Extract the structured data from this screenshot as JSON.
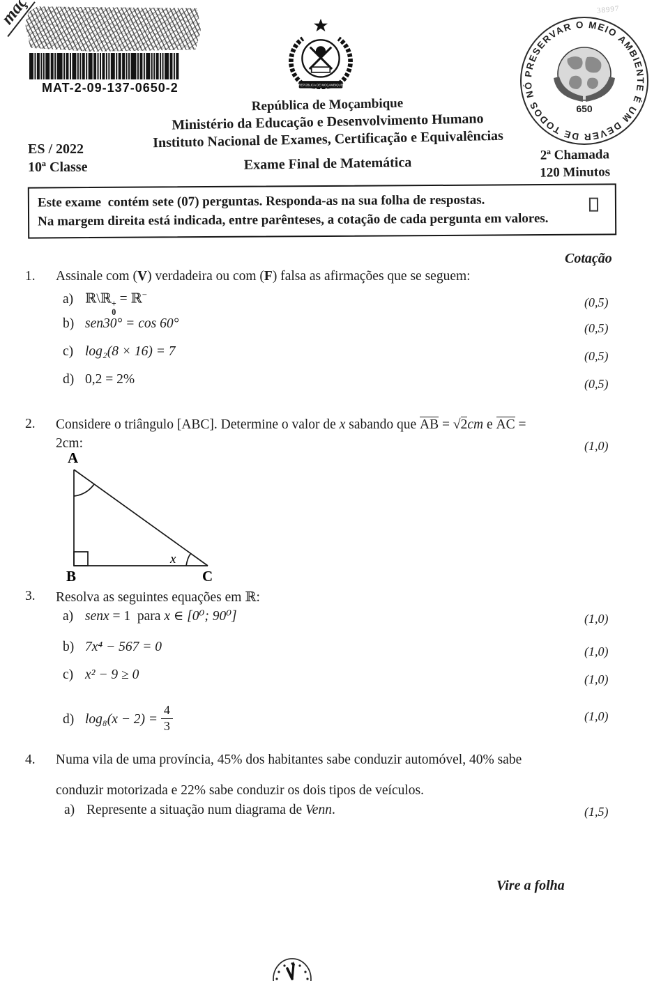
{
  "page": {
    "corner_fragment": "maç",
    "faint_number": "38997"
  },
  "barcode": {
    "label": "MAT-2-09-137-0650-2"
  },
  "emblem": {
    "banner_text": "REPÚBLICA DE MOÇAMBIQUE"
  },
  "eco_stamp": {
    "ring_text": "PRESERVAR O MEIO AMBIENTE É UM DEVER DE TODOS NÓS •",
    "center_number": "650"
  },
  "header": {
    "country": "República de Moçambique",
    "ministry": "Ministério da Educação e Desenvolvimento Humano",
    "institute": "Instituto Nacional de Exames, Certificação e Equivalências",
    "exam_title": "Exame Final de Matemática",
    "session": "ES / 2022",
    "grade": "10ª Classe",
    "call": "2ª Chamada",
    "duration": "120 Minutos"
  },
  "notice": {
    "line1": "Este exame  contém sete (07) perguntas. Responda-as na sua folha de respostas.",
    "line2": "Na margem direita está indicada, entre parênteses, a cotação de cada pergunta em valores."
  },
  "cotacao_header": "Cotação",
  "q1": {
    "number": "1.",
    "t1": "Assinale com (",
    "t2": "V",
    "t3": ") verdadeira ou com (",
    "t4": "F",
    "t5": ") falsa as afirmações que se seguem:",
    "items": [
      {
        "label": "a)",
        "m1": "ℝ\\ℝ",
        "sup": "+",
        "sub": "0",
        "m2": " = ℝ",
        "sup2": "−",
        "cotacao": "(0,5)"
      },
      {
        "label": "b)",
        "math": "sen30° = cos 60°",
        "cotacao": "(0,5)"
      },
      {
        "label": "c)",
        "math": "log₂(8 × 16) = 7",
        "cotacao": "(0,5)"
      },
      {
        "label": "d)",
        "math": "0,2 = 2%",
        "cotacao": "(0,5)"
      }
    ]
  },
  "q2": {
    "number": "2.",
    "pre": "Considere o triângulo [ABC]. Determine o valor de ",
    "x": "x",
    "mid": " sabando que ",
    "ab": "AB",
    "eq1": " = √",
    "root": "2",
    "cm1": "cm",
    "conj": " e ",
    "ac": "AC",
    "eq2": " =",
    "line2": "2cm:",
    "cotacao": "(1,0)",
    "triangle": {
      "a": "A",
      "b": "B",
      "c": "C",
      "angle": "x"
    }
  },
  "q3": {
    "number": "3.",
    "text": "Resolva as seguintes equações em ℝ:",
    "items": [
      {
        "label": "a)",
        "m1": "senx",
        "m2": " = 1  ",
        "text": "para ",
        "m3": "x ∈ [0⁰; 90⁰]",
        "cotacao": "(1,0)"
      },
      {
        "label": "b)",
        "math": "7x⁴ − 567 = 0",
        "cotacao": "(1,0)"
      },
      {
        "label": "c)",
        "math": "x² − 9 ≥ 0",
        "cotacao": "(1,0)"
      },
      {
        "label": "d)",
        "math": "log₈(x − 2) = ",
        "num": "4",
        "den": "3",
        "cotacao": "(1,0)"
      }
    ]
  },
  "q4": {
    "number": "4.",
    "line1": "Numa vila de uma província, 45% dos habitantes sabe conduzir automóvel, 40% sabe",
    "line2": "conduzir motorizada e 22% sabe conduzir os dois tipos de veículos.",
    "item_label": "a)",
    "item_pre": "Represente a situação num diagrama de ",
    "item_name": "Venn",
    "item_post": ".",
    "cotacao": "(1,5)"
  },
  "footer": {
    "turn_page": "Vire a folha"
  }
}
